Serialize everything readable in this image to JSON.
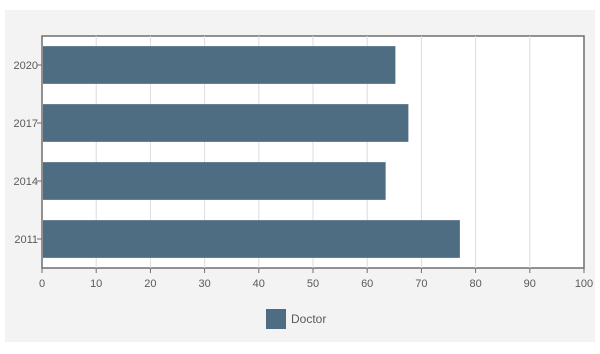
{
  "chart_data": {
    "type": "bar",
    "orientation": "horizontal",
    "categories": [
      "2020",
      "2017",
      "2014",
      "2011"
    ],
    "series": [
      {
        "name": "Doctor",
        "values": [
          65.2,
          67.6,
          63.4,
          77.1
        ]
      }
    ],
    "xlim": [
      0,
      100
    ],
    "x_ticks": [
      "0",
      "10",
      "20",
      "30",
      "40",
      "50",
      "60",
      "70",
      "80",
      "90",
      "100"
    ],
    "grid": true,
    "legend_position": "bottom",
    "title": "",
    "xlabel": "",
    "ylabel": ""
  },
  "colors": {
    "panel_background": "#f3f3f3",
    "plot_background": "#ffffff",
    "bar": "#4e6d82",
    "grid": "#dcdcdc",
    "axis": "#6e6e6e",
    "text": "#5a5a5a"
  }
}
